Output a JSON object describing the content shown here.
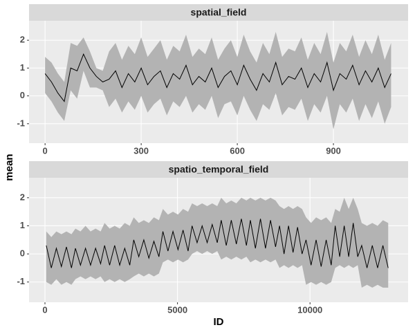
{
  "chart_data": [
    {
      "type": "ribbon-line",
      "title": "spatial_field",
      "ylabel": "mean",
      "x": [
        0,
        20,
        40,
        60,
        80,
        100,
        120,
        140,
        160,
        180,
        200,
        220,
        240,
        260,
        280,
        300,
        320,
        340,
        360,
        380,
        400,
        420,
        440,
        460,
        480,
        500,
        520,
        540,
        560,
        580,
        600,
        620,
        640,
        660,
        680,
        700,
        720,
        740,
        760,
        780,
        800,
        820,
        840,
        860,
        880,
        900,
        920,
        940,
        960,
        980,
        1000,
        1020,
        1040,
        1060,
        1080
      ],
      "values": [
        0.8,
        0.5,
        0.1,
        -0.2,
        1.0,
        0.9,
        1.5,
        1.0,
        0.7,
        0.5,
        0.6,
        0.9,
        0.3,
        0.8,
        0.5,
        1.0,
        0.4,
        0.7,
        0.9,
        0.3,
        0.8,
        0.6,
        1.1,
        0.4,
        0.7,
        0.5,
        1.0,
        0.3,
        0.7,
        0.9,
        0.4,
        1.1,
        0.6,
        0.2,
        0.8,
        0.5,
        1.2,
        0.4,
        0.7,
        0.6,
        1.0,
        0.3,
        0.8,
        0.5,
        1.2,
        0.2,
        0.8,
        0.6,
        1.1,
        0.4,
        0.9,
        0.5,
        1.0,
        0.3,
        0.8
      ],
      "lower": [
        0.1,
        -0.2,
        -0.6,
        -0.9,
        0.2,
        -0.1,
        0.9,
        0.3,
        0.3,
        0.2,
        -0.4,
        -0.1,
        -0.6,
        -0.2,
        -0.5,
        0,
        -0.6,
        -0.3,
        -0.1,
        -0.7,
        -0.2,
        -0.4,
        0,
        -0.6,
        -0.3,
        -0.5,
        0,
        -0.8,
        -0.3,
        -0.2,
        -0.7,
        0,
        -0.5,
        -0.9,
        -0.3,
        -0.5,
        0.1,
        -0.7,
        -0.4,
        -0.5,
        -0.1,
        -0.9,
        -0.3,
        -0.6,
        0,
        -1.2,
        -0.3,
        -0.6,
        -0.1,
        -0.9,
        -0.3,
        -0.8,
        -0.2,
        -1.0,
        -0.4
      ],
      "upper": [
        1.4,
        1.2,
        0.8,
        0.5,
        1.9,
        1.8,
        2.1,
        1.6,
        1.0,
        0.9,
        1.6,
        1.9,
        1.3,
        1.8,
        1.5,
        2.1,
        1.4,
        1.7,
        2.0,
        1.3,
        1.8,
        1.6,
        2.2,
        1.4,
        1.7,
        1.5,
        2.1,
        1.3,
        1.7,
        2.0,
        1.4,
        2.2,
        1.6,
        1.2,
        1.9,
        1.5,
        2.3,
        1.4,
        1.7,
        1.6,
        2.1,
        1.3,
        1.9,
        1.5,
        2.3,
        1.2,
        1.9,
        1.6,
        2.2,
        1.4,
        2.0,
        1.5,
        2.2,
        1.3,
        1.9
      ],
      "color": "#000000",
      "ribbon_color": "#b3b3b3",
      "xlim": [
        -50,
        1133
      ],
      "ylim": [
        -1.7,
        2.7
      ],
      "xticks": [
        0,
        300,
        600,
        900
      ],
      "yticks": [
        -1,
        0,
        1,
        2
      ],
      "grid": true
    },
    {
      "type": "ribbon-line",
      "title": "spatio_temporal_field",
      "xlabel": "ID",
      "x": [
        50,
        240,
        430,
        620,
        810,
        1000,
        1150,
        1340,
        1530,
        1720,
        1910,
        2100,
        2250,
        2440,
        2630,
        2820,
        3010,
        3200,
        3350,
        3540,
        3730,
        3920,
        4110,
        4300,
        4450,
        4640,
        4830,
        5020,
        5210,
        5400,
        5550,
        5740,
        5930,
        6120,
        6310,
        6500,
        6650,
        6840,
        7030,
        7220,
        7410,
        7600,
        7750,
        7940,
        8130,
        8320,
        8510,
        8700,
        8850,
        9020,
        9190,
        9360,
        9530,
        9700,
        9850,
        10040,
        10230,
        10420,
        10610,
        10800,
        10950,
        11120,
        11290,
        11460,
        11630,
        11800,
        11950,
        12150,
        12350,
        12550,
        12750,
        12950
      ],
      "values": [
        0.3,
        -0.5,
        0.2,
        -0.45,
        0.25,
        -0.5,
        0.2,
        -0.4,
        0.2,
        -0.4,
        0.2,
        -0.35,
        0.3,
        -0.4,
        0.3,
        -0.4,
        0.2,
        -0.4,
        0.5,
        -0.1,
        0.5,
        -0.15,
        0.45,
        -0.1,
        0.8,
        0.1,
        0.8,
        0.15,
        0.85,
        0.1,
        1.0,
        0.4,
        1.0,
        0.4,
        1.05,
        0.4,
        1.2,
        0.3,
        1.2,
        0.35,
        1.25,
        0.3,
        1.2,
        0.2,
        1.25,
        0.2,
        1.2,
        0.25,
        1.0,
        0,
        1.0,
        0.05,
        0.95,
        0,
        0.5,
        -0.4,
        0.5,
        -0.45,
        0.5,
        -0.4,
        1.0,
        -0.1,
        1.0,
        -0.1,
        1.1,
        -0.1,
        0.3,
        -0.5,
        0.3,
        -0.5,
        0.3,
        -0.5
      ],
      "lower": [
        -1.0,
        -1.1,
        -0.9,
        -1.1,
        -1.0,
        -1.1,
        -0.9,
        -0.8,
        -0.9,
        -0.8,
        -0.9,
        -0.8,
        -1.0,
        -0.9,
        -1.0,
        -0.9,
        -1.0,
        -0.9,
        -0.8,
        -0.7,
        -0.8,
        -0.7,
        -0.8,
        -0.7,
        -0.3,
        -0.2,
        -0.3,
        -0.2,
        -0.3,
        -0.2,
        0,
        0.1,
        0,
        0.1,
        0,
        0.1,
        -0.2,
        -0.1,
        -0.2,
        -0.1,
        -0.2,
        -0.1,
        -0.3,
        -0.2,
        -0.3,
        -0.2,
        -0.3,
        -0.2,
        -0.5,
        -0.4,
        -0.5,
        -0.4,
        -0.5,
        -0.4,
        -1.1,
        -1.0,
        -1.1,
        -1.0,
        -1.1,
        -1.0,
        -0.5,
        -0.4,
        -0.5,
        -0.4,
        -0.5,
        -0.4,
        -1.2,
        -1.1,
        -1.2,
        -1.1,
        -1.2,
        -1.2
      ],
      "upper": [
        0.8,
        0.6,
        0.8,
        0.7,
        0.8,
        0.7,
        0.9,
        0.8,
        1.0,
        0.8,
        0.9,
        0.8,
        1.1,
        0.9,
        1.0,
        0.9,
        1.1,
        1.0,
        1.3,
        1.1,
        1.2,
        1.1,
        1.3,
        1.2,
        1.6,
        1.4,
        1.5,
        1.4,
        1.6,
        1.5,
        1.8,
        1.7,
        1.8,
        1.7,
        1.8,
        1.7,
        2.0,
        1.8,
        1.9,
        1.8,
        2.0,
        1.9,
        2.0,
        1.9,
        2.0,
        1.9,
        2.0,
        1.9,
        1.7,
        1.6,
        1.7,
        1.6,
        1.7,
        1.6,
        1.3,
        1.1,
        1.3,
        1.2,
        1.3,
        1.1,
        1.6,
        1.5,
        2.0,
        1.6,
        2.0,
        1.6,
        1.1,
        1.0,
        1.1,
        1.0,
        1.2,
        1.1
      ],
      "color": "#000000",
      "ribbon_color": "#b3b3b3",
      "xlim": [
        -600,
        13700
      ],
      "ylim": [
        -1.72,
        2.71
      ],
      "xticks": [
        0,
        5000,
        10000
      ],
      "yticks": [
        -1,
        0,
        1,
        2
      ],
      "grid": true
    }
  ]
}
